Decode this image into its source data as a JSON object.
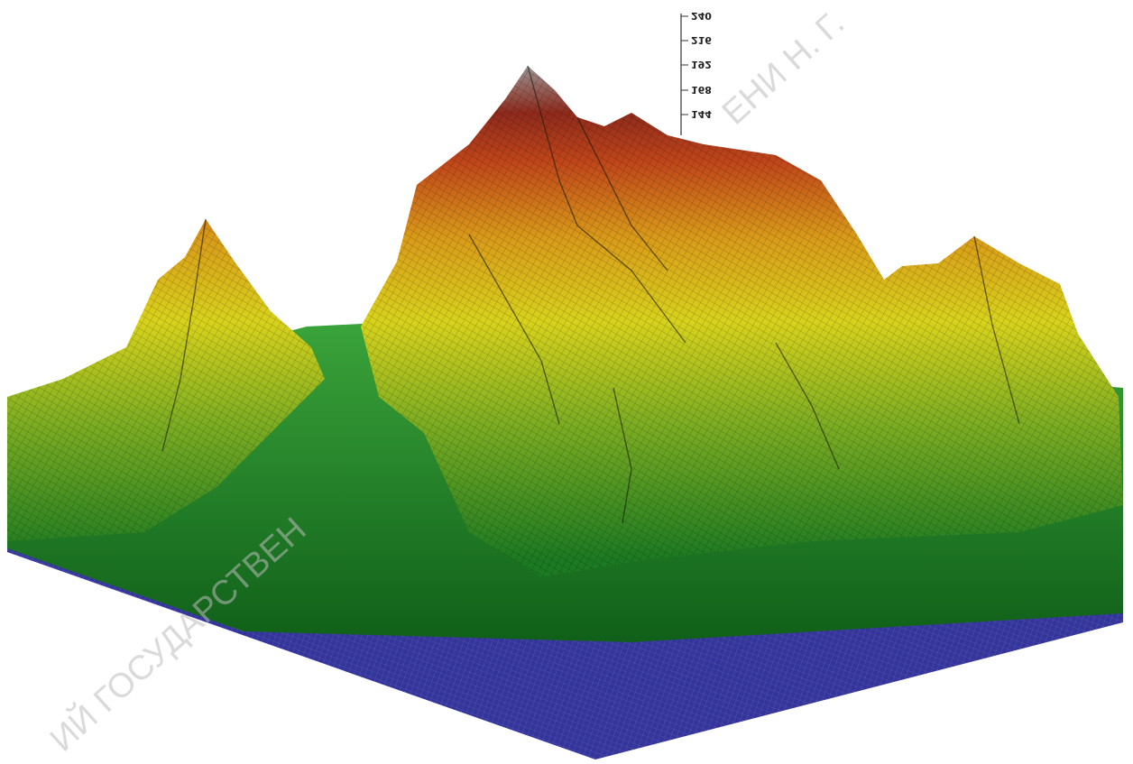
{
  "axis_ticks": [
    "240",
    "216",
    "192",
    "168",
    "144"
  ],
  "watermarks": [
    "ИЙ ГОСУДАРСТВЕН",
    "ЕНИ Н. Г."
  ]
}
